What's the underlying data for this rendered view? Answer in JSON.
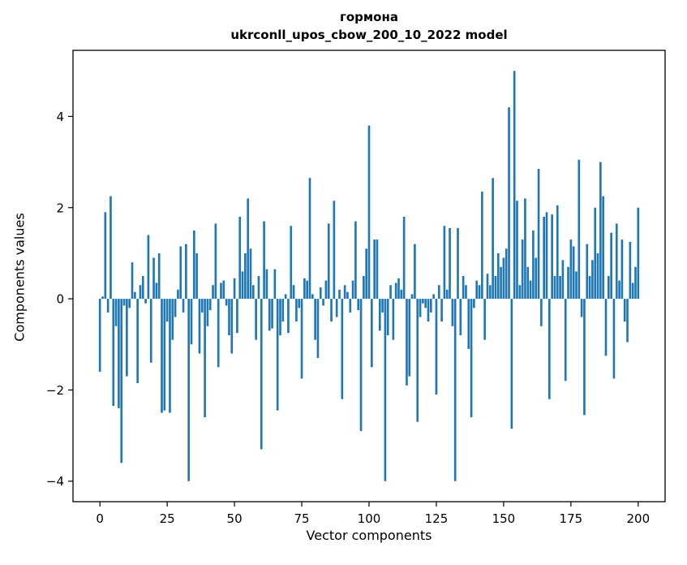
{
  "chart_data": {
    "type": "bar",
    "title": "гормона",
    "subtitle": "ukrconll_upos_cbow_200_10_2022 model",
    "xlabel": "Vector components",
    "ylabel": "Components values",
    "x_ticks": [
      0,
      25,
      50,
      75,
      100,
      125,
      150,
      175,
      200
    ],
    "y_ticks": [
      -4,
      -2,
      0,
      2,
      4
    ],
    "xlim": [
      -10,
      210
    ],
    "ylim": [
      -4.45,
      5.45
    ],
    "legend": "none",
    "grid": false,
    "bar_color": "#1f77b4",
    "x_start": 0,
    "values": [
      -1.6,
      0.05,
      1.9,
      -0.3,
      2.25,
      -2.35,
      -0.6,
      -2.4,
      -3.6,
      -0.15,
      -1.7,
      -0.2,
      0.8,
      0.15,
      -1.85,
      0.3,
      0.5,
      -0.1,
      1.4,
      -1.4,
      0.9,
      0.35,
      1.0,
      -2.5,
      -2.45,
      -0.5,
      -2.5,
      -0.9,
      -0.4,
      0.2,
      1.15,
      -0.3,
      1.2,
      -4.0,
      -1.0,
      1.5,
      1.0,
      -1.2,
      -0.3,
      -2.6,
      -0.6,
      -0.25,
      0.3,
      1.65,
      -1.5,
      0.35,
      0.4,
      -0.15,
      -0.8,
      -1.2,
      0.45,
      -0.75,
      1.8,
      0.6,
      1.0,
      2.2,
      1.1,
      0.3,
      -0.9,
      0.5,
      -3.3,
      1.7,
      0.65,
      -0.7,
      -0.65,
      0.65,
      -2.45,
      -0.8,
      -0.5,
      0.1,
      -0.75,
      1.6,
      0.3,
      -0.5,
      -0.2,
      -1.75,
      0.45,
      0.4,
      2.65,
      0.1,
      -0.9,
      -1.3,
      0.25,
      -0.15,
      0.4,
      1.65,
      -0.5,
      2.15,
      -0.4,
      0.2,
      -2.2,
      0.3,
      0.15,
      -0.3,
      0.4,
      1.7,
      -0.25,
      -2.9,
      0.5,
      1.1,
      3.8,
      -1.5,
      1.3,
      1.3,
      -0.7,
      -0.3,
      -4.0,
      -0.8,
      0.3,
      -0.9,
      0.35,
      0.45,
      0.2,
      1.8,
      -1.9,
      -1.7,
      0.1,
      1.2,
      -2.7,
      -0.4,
      -0.1,
      -0.2,
      -0.5,
      -0.3,
      0.1,
      -2.1,
      0.3,
      -0.5,
      1.6,
      0.2,
      1.55,
      -0.6,
      -4.0,
      1.55,
      -0.8,
      0.5,
      0.3,
      -1.1,
      -2.6,
      -0.2,
      0.4,
      0.3,
      2.35,
      -0.9,
      0.55,
      0.3,
      2.65,
      0.5,
      1.0,
      0.7,
      0.9,
      1.1,
      4.2,
      -2.85,
      5.0,
      2.15,
      0.3,
      1.3,
      2.2,
      0.7,
      0.4,
      1.5,
      0.9,
      2.85,
      -0.6,
      1.8,
      1.9,
      -2.2,
      1.85,
      0.5,
      2.05,
      0.5,
      0.85,
      -1.8,
      0.7,
      1.3,
      1.15,
      0.6,
      3.05,
      -0.4,
      -2.55,
      1.2,
      0.5,
      0.85,
      2.0,
      1.0,
      3.0,
      2.25,
      -1.25,
      0.5,
      1.45,
      -1.75,
      1.65,
      0.4,
      1.3,
      -0.5,
      -0.95,
      1.25,
      0.35,
      0.7,
      2.0
    ]
  }
}
